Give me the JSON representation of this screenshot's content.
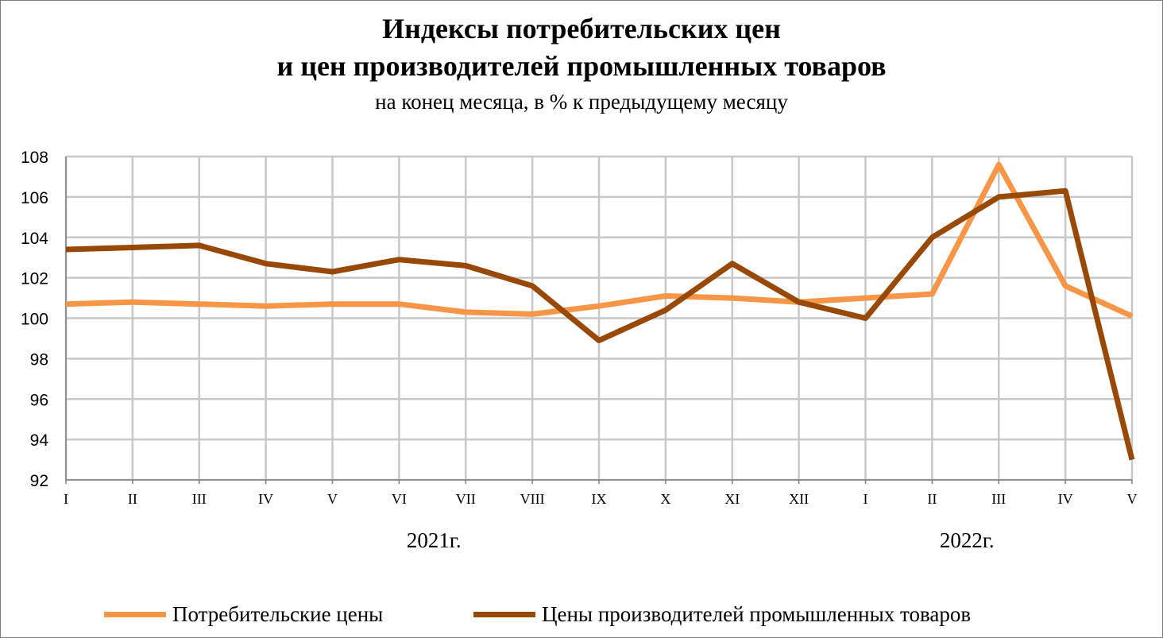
{
  "chart_data": {
    "type": "line",
    "title_line1": "Индексы потребительских цен",
    "title_line2": "и цен производителей промышленных товаров",
    "subtitle": "на конец месяца, в % к предыдущему месяцу",
    "categories": [
      "I",
      "II",
      "III",
      "IV",
      "V",
      "VI",
      "VII",
      "VIII",
      "IX",
      "X",
      "XI",
      "XII",
      "I",
      "II",
      "III",
      "IV",
      "V"
    ],
    "year_labels": [
      {
        "label": "2021г.",
        "at_category": 6
      },
      {
        "label": "2022г.",
        "at_category": 14
      }
    ],
    "ylim": [
      92,
      108
    ],
    "yticks": [
      92,
      94,
      96,
      98,
      100,
      102,
      104,
      106,
      108
    ],
    "grid": true,
    "legend_position": "bottom",
    "series": [
      {
        "name": "Потребительские цены",
        "color": "#F79646",
        "values": [
          100.7,
          100.8,
          100.7,
          100.6,
          100.7,
          100.7,
          100.3,
          100.2,
          100.6,
          101.1,
          101.0,
          100.8,
          101.0,
          101.2,
          107.6,
          101.6,
          100.1
        ]
      },
      {
        "name": "Цены производителей  промышленных товаров",
        "color": "#984807",
        "values": [
          103.4,
          103.5,
          103.6,
          102.7,
          102.3,
          102.9,
          102.6,
          101.6,
          98.9,
          100.4,
          102.7,
          100.8,
          100.0,
          104.0,
          106.0,
          106.3,
          93.0
        ]
      }
    ]
  }
}
